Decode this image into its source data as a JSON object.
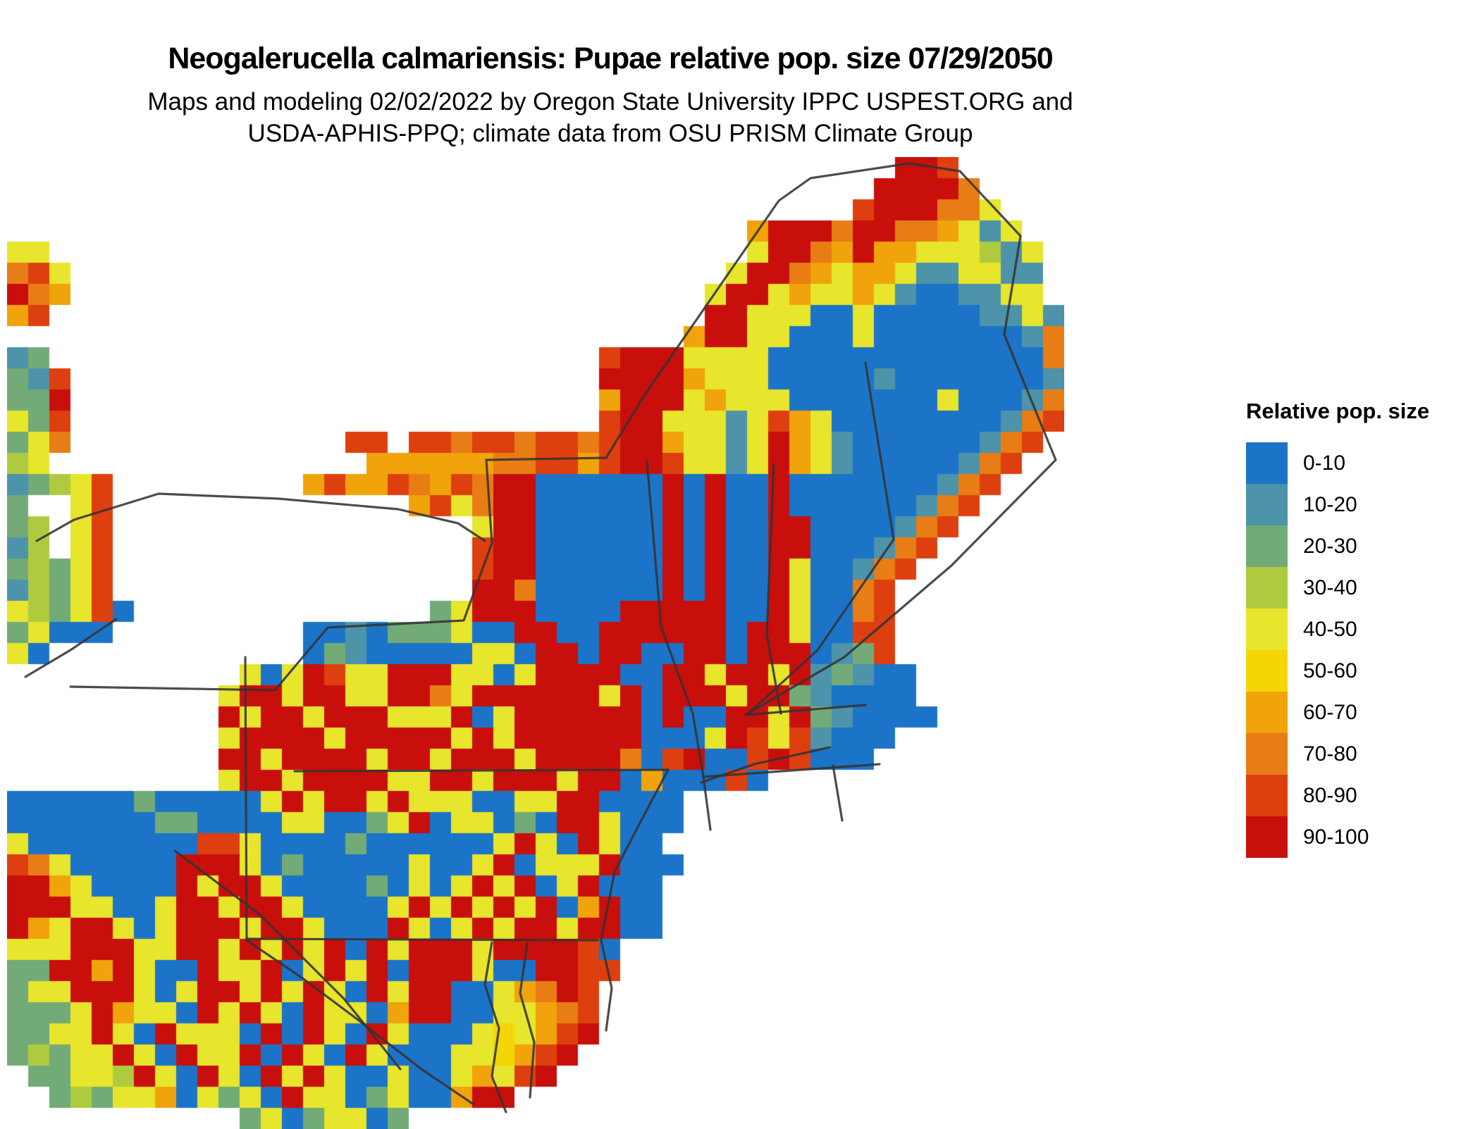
{
  "header": {
    "title": "Neogalerucella calmariensis: Pupae relative pop. size 07/29/2050",
    "subtitle_line1": "Maps and modeling 02/02/2022 by Oregon State University IPPC USPEST.ORG and",
    "subtitle_line2": "USDA-APHIS-PPQ; climate data from OSU PRISM Climate Group"
  },
  "legend": {
    "title": "Relative pop. size",
    "items": [
      {
        "label": "0-10",
        "color": "#1B74C8"
      },
      {
        "label": "10-20",
        "color": "#4D93AA"
      },
      {
        "label": "20-30",
        "color": "#72AB77"
      },
      {
        "label": "30-40",
        "color": "#AECB3F"
      },
      {
        "label": "40-50",
        "color": "#E7E52C"
      },
      {
        "label": "50-60",
        "color": "#F4D607"
      },
      {
        "label": "60-70",
        "color": "#F0A30A"
      },
      {
        "label": "70-80",
        "color": "#E87D15"
      },
      {
        "label": "80-90",
        "color": "#DE3F0E"
      },
      {
        "label": "90-100",
        "color": "#C80F0C"
      }
    ]
  },
  "map": {
    "description": "Pixel raster of relative population size classes over the northeastern United States; '.' = no data (water / outside modeled area)",
    "palette": {
      "b": "#1B74C8",
      "t": "#4D93AA",
      "g": "#72AB77",
      "l": "#AECB3F",
      "y": "#E7E52C",
      "G": "#F4D607",
      "o": "#F0A30A",
      "O": "#E87D15",
      "r": "#DE3F0E",
      "R": "#C80F0C"
    },
    "rows": [
      [
        "..........",
        "..........",
        "..........",
        "..........",
        "..RRr....."
      ],
      [
        "..........",
        "..........",
        "..........",
        "..........",
        ".RRRRO...."
      ],
      [
        "..........",
        "..........",
        "..........",
        "..........",
        "rRRROOy..."
      ],
      [
        "..........",
        "..........",
        "..........",
        ".....oRRRO",
        "RROOoyty.."
      ],
      [
        "yy........",
        "..........",
        "..........",
        ".....yRROo",
        "Rooyyylty."
      ],
      [
        "Ory.......",
        "..........",
        "..........",
        "....yRROoy",
        "ooyttyytt."
      ],
      [
        "ROo.......",
        "..........",
        "..........",
        "...yRRyoyy",
        "oytbbttyy."
      ],
      [
        "or........",
        "..........",
        "..........",
        "...RRyyybb",
        "ybbbbbttyt"
      ],
      [
        "..........",
        "..........",
        "..........",
        "..oRRyybbb",
        "ybbbbbbbtO"
      ],
      [
        "tg........",
        "..........",
        "........rR",
        "RRyyyybbbb",
        "bbbbbbbbbO"
      ],
      [
        "gtr.......",
        "..........",
        "........RR",
        "RRoyyybbbb",
        "btbbbbbbbt"
      ],
      [
        "ggR.......",
        "..........",
        "........oR",
        "RRyoyyybbb",
        "bbbbybbbtO"
      ],
      [
        "ygr.......",
        "..........",
        "........rR",
        "Ryyytyroyb",
        "bbbbbbbtOr"
      ],
      [
        "gyO.......",
        "......rr.r",
        "rOrrOrrOrR",
        "RoyytyRoyt",
        "bbbbbbtOr."
      ],
      [
        "ly........",
        ".......ooo",
        "oooOOrrorR",
        "RryytyRoyt",
        "bbbbbtOr.."
      ],
      [
        "tglyr.....",
        "....oroorO",
        "orORRbbbbb",
        "bRbRbbRbbb",
        "bbbbtOr..."
      ],
      [
        "g..yr.....",
        ".........o",
        "ryORRbbbbb",
        "bRbRbbRbbb",
        "bbbtOr...."
      ],
      [
        "gl.yr.....",
        "..........",
        "..yRRbbbbb",
        "bRbRbbRRbb",
        "bbtOr....."
      ],
      [
        "tl.yr.....",
        "..........",
        "..rRRbbbbb",
        "bRbRbbRRbb",
        "btOr......"
      ],
      [
        "glgyr.....",
        "..........",
        "..rRRbbbbb",
        "bRbRbbRybb",
        "tOr......."
      ],
      [
        "tlgyr.....",
        "..........",
        "..RRObbbbb",
        "bRbRbbRybb",
        "Or........"
      ],
      [
        "ylgyrb....",
        "..........",
        "gyRRRbbbbR",
        "RRRRbbRybb",
        "Or........"
      ],
      [
        "gybbb.....",
        "....bbtbgg",
        "gybbRRbbRR",
        "RRRRbRRybb",
        "rr........"
      ],
      [
        "yb........",
        "....bgtbbb",
        "bbyybRRbRR",
        "bbRRbRRRbt",
        "gr........"
      ],
      [
        "..........",
        ".ybyRryyRR",
        "RyybyRRRRb",
        "bRRyRRyRtg",
        "tbb......."
      ],
      [
        "..........",
        "yRRyRRyyRR",
        "OyRRRRRRyR",
        "bRRRyRRgtb",
        "bbb......."
      ],
      [
        "..........",
        "RyRRyRRRyy",
        "yRbyRRRRRR",
        "bRbbRRyRgt",
        "bbbb......"
      ],
      [
        "..........",
        "yRRRRyRRRR",
        "RyRyRRRRRR",
        "bbbyRryrtb",
        "bb........"
      ],
      [
        "..........",
        "RRyRRRRyRR",
        "yRRRyRRRRO",
        "brRbbrRrbb",
        "b........."
      ],
      [
        "..........",
        "yRRyRRRRyy",
        "RRyRRRyRRb",
        "obbbrb....",
        ".........."
      ],
      [
        "bbbbbbgbbb",
        "bbyRyRRyRy",
        "yybbyyRRbb",
        "bb........",
        ".........."
      ],
      [
        "bbbbbbbggb",
        "bbbyybbgyR",
        "byybgbRRyb",
        "bb........",
        ".........."
      ],
      [
        "ybbbbbbbbr",
        "rybbbbgbbb",
        "bbbyRybRyb",
        "b.........",
        ".........."
      ],
      [
        "rOybbbbbRR",
        "Rybgbbbbby",
        "bbyRbyyyRb",
        "bb........",
        ".........."
      ],
      [
        "RRoybbbbRy",
        "RRybbbbgby",
        "byRyRbyRbb",
        "b.........",
        ".........."
      ],
      [
        "RRRyybbyRR",
        "yRRybbbbyR",
        "yRyRyRboRb",
        "b.........",
        ".........."
      ],
      [
        "RoyRRybyRR",
        "RyRRybbbRy",
        "byRyRRyRRb",
        "b.........",
        ".........."
      ],
      [
        "yyyRRRyyRR",
        "yRyRyRbRyR",
        "RRyRRRRrb.",
        "..........",
        ".........."
      ],
      [
        "ggRRoRybbR",
        "yyRbyRyRbR",
        "RRybbRRrr.",
        "..........",
        ".........."
      ],
      [
        "gyyRRRybyR",
        "RyRyRybRyR",
        "RbbyoORr..",
        "..........",
        ".........."
      ],
      [
        "gggyRoyybR",
        "yRybRyyboR",
        "RbbyyoOr..",
        "..........",
        ".........."
      ],
      [
        "ggyyRybRyy",
        "ybRbRybRyb",
        "bbyGyorR..",
        "..........",
        ".........."
      ],
      [
        "glgyyRybRy",
        "yRbRybRybb",
        "byyGorR...",
        "..........",
        ".........."
      ],
      [
        ".ggyylRybR",
        "ybRyRybbyb",
        "byoyrR....",
        "..........",
        ".........."
      ],
      [
        "..glgyyoby",
        "gybRyybgyb",
        "boRR......",
        "..........",
        ".........."
      ],
      [
        "..........",
        ".gybgyybg.",
        "..........",
        "..........",
        ".........."
      ]
    ]
  }
}
